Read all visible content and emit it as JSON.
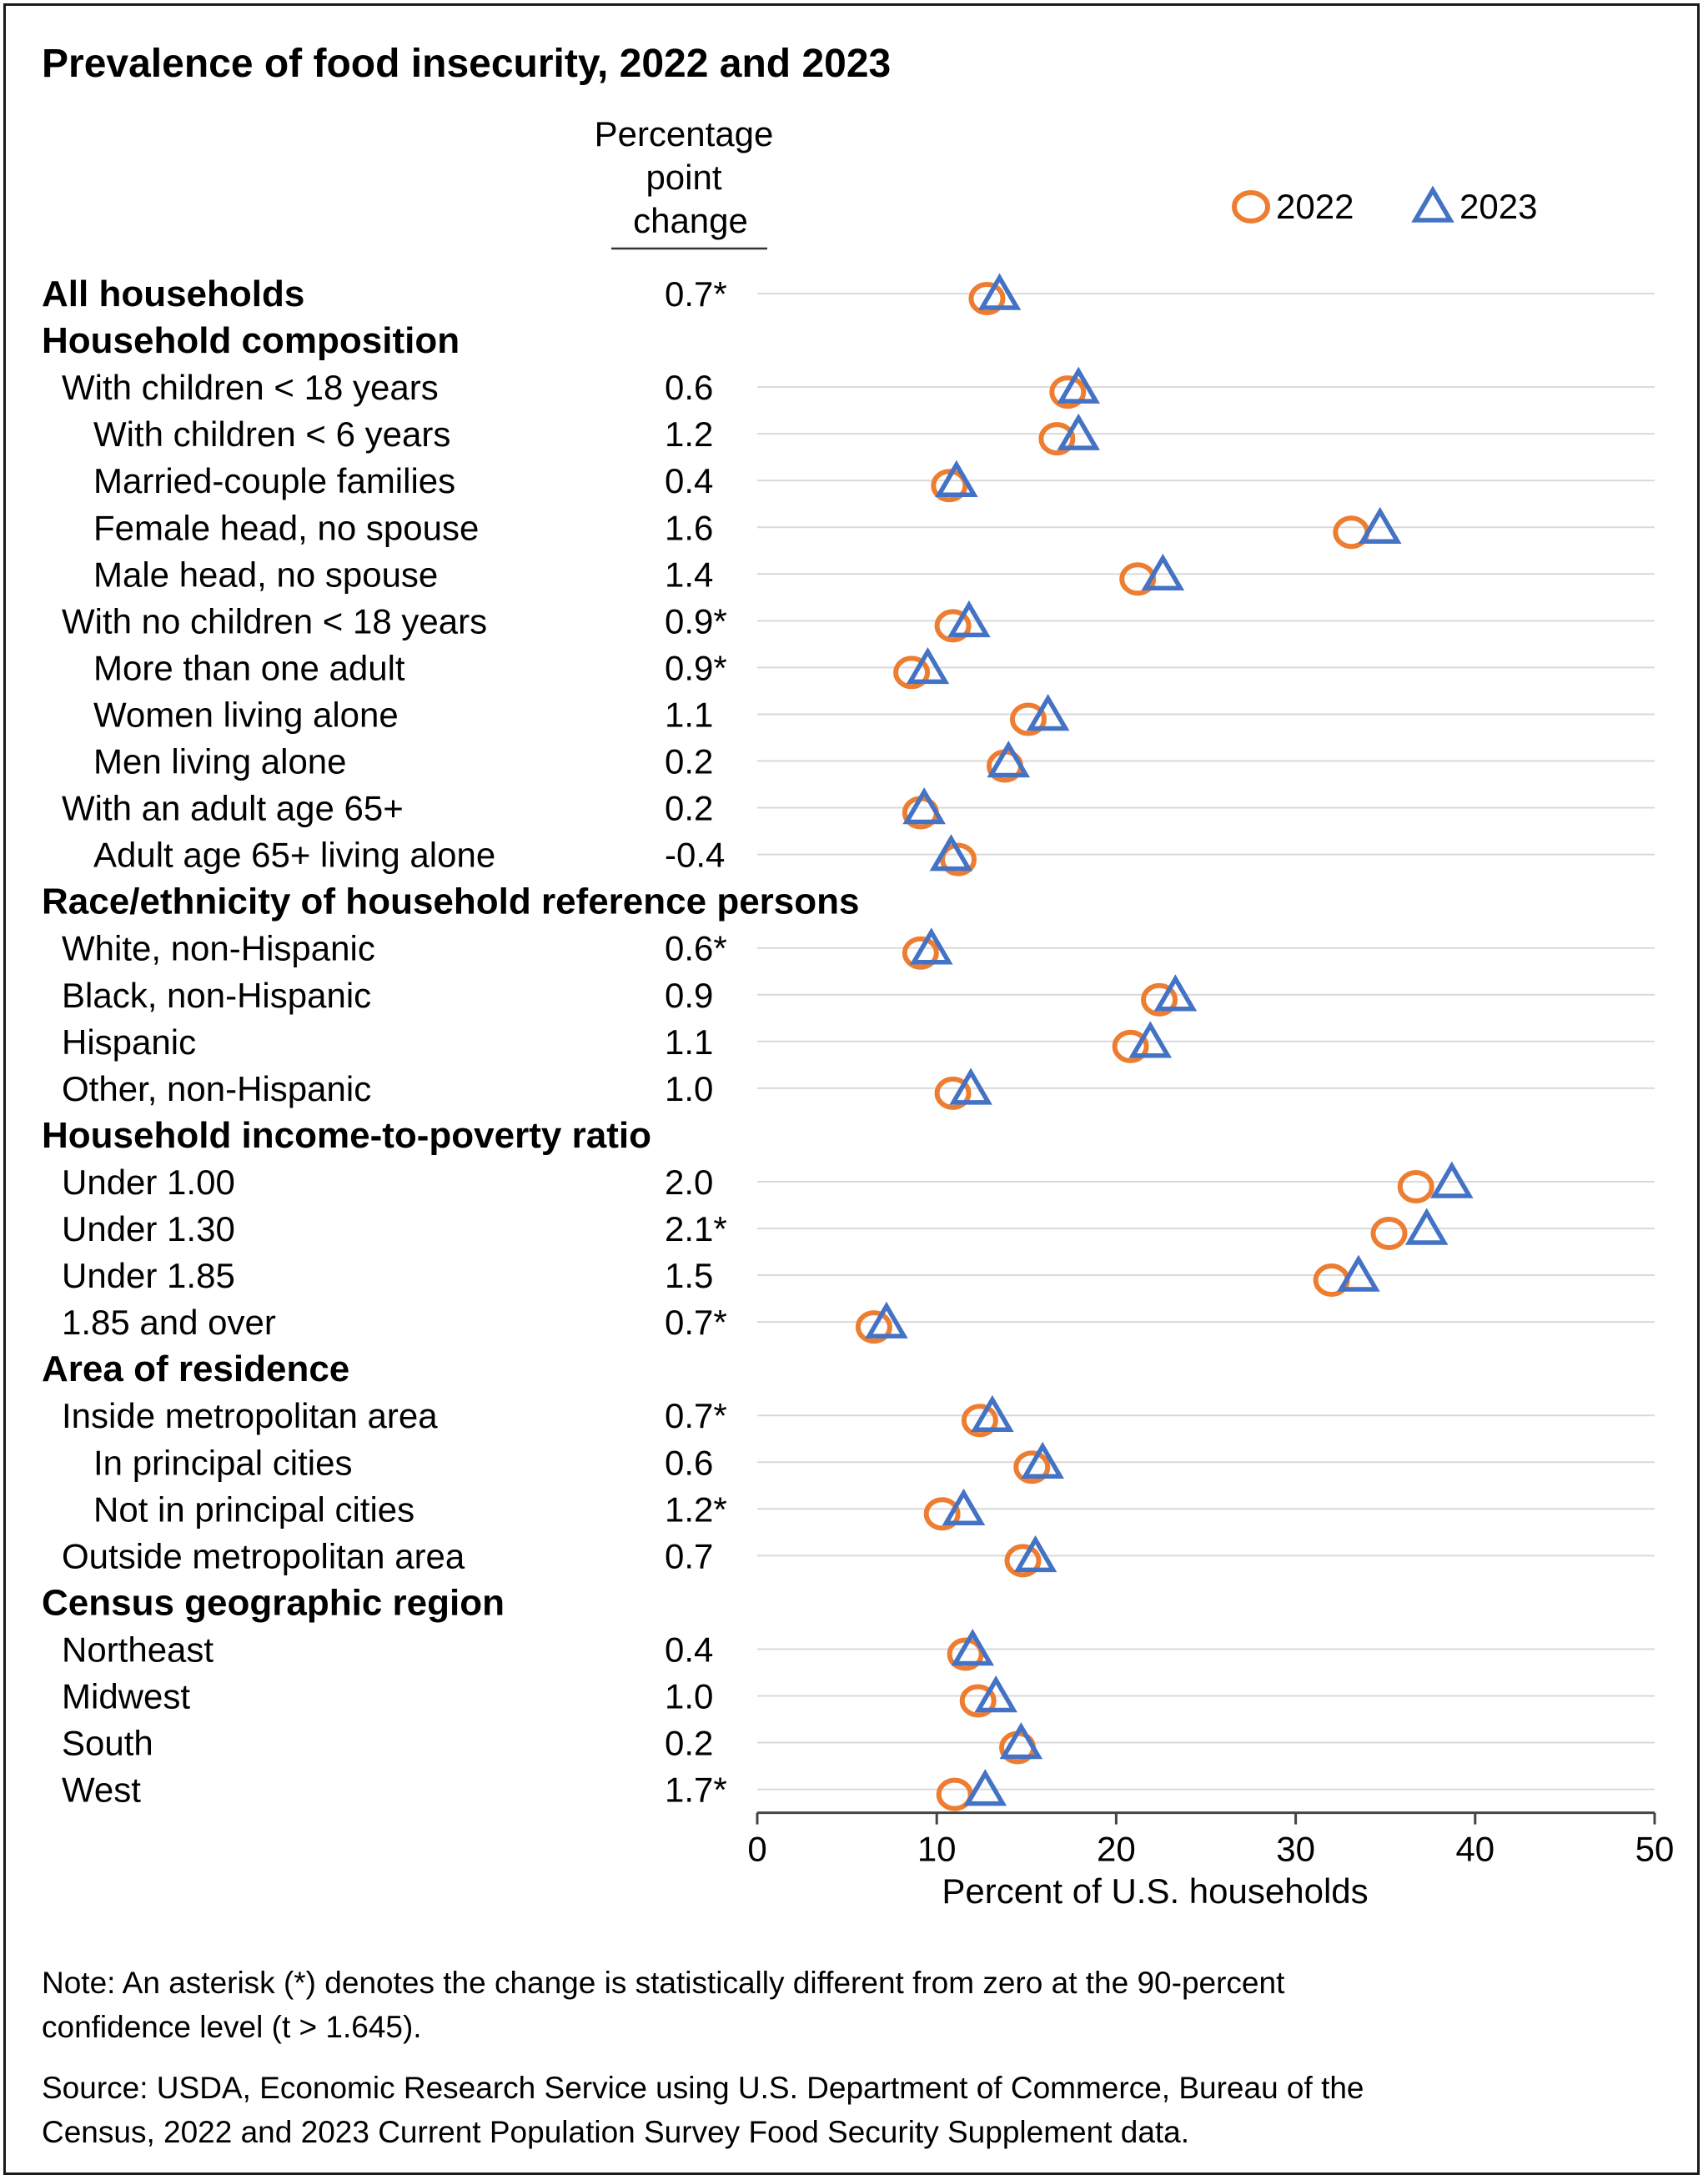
{
  "chart_data": {
    "type": "scatter",
    "title": "Prevalence of food insecurity, 2022 and 2023",
    "change_header": [
      "Percentage",
      "point",
      "change"
    ],
    "xlabel": "Percent of U.S. households",
    "xlim": [
      0,
      50
    ],
    "xticks": [
      "0",
      "10",
      "20",
      "30",
      "40",
      "50"
    ],
    "legend": [
      {
        "name": "2022",
        "marker": "circle",
        "color": "#ED7D31"
      },
      {
        "name": "2023",
        "marker": "triangle",
        "color": "#4472C4"
      }
    ],
    "rows": [
      {
        "label": "All households",
        "level": 0,
        "bold": true,
        "change": "0.7*",
        "v2022": 12.8,
        "v2023": 13.5
      },
      {
        "label": "Household composition",
        "level": 0,
        "bold": true,
        "header": true
      },
      {
        "label": "With children < 18 years",
        "level": 1,
        "change": "0.6",
        "v2022": 17.3,
        "v2023": 17.9
      },
      {
        "label": "With children < 6 years",
        "level": 2,
        "change": "1.2",
        "v2022": 16.7,
        "v2023": 17.9
      },
      {
        "label": "Married-couple families",
        "level": 2,
        "change": "0.4",
        "v2022": 10.7,
        "v2023": 11.1
      },
      {
        "label": "Female head, no spouse",
        "level": 2,
        "change": "1.6",
        "v2022": 33.1,
        "v2023": 34.7
      },
      {
        "label": "Male head, no spouse",
        "level": 2,
        "change": "1.4",
        "v2022": 21.2,
        "v2023": 22.6
      },
      {
        "label": "With no children < 18 years",
        "level": 1,
        "change": "0.9*",
        "v2022": 10.9,
        "v2023": 11.8
      },
      {
        "label": "More than one adult",
        "level": 2,
        "change": "0.9*",
        "v2022": 8.6,
        "v2023": 9.5
      },
      {
        "label": "Women living alone",
        "level": 2,
        "change": "1.1",
        "v2022": 15.1,
        "v2023": 16.2
      },
      {
        "label": "Men living alone",
        "level": 2,
        "change": "0.2",
        "v2022": 13.8,
        "v2023": 14.0
      },
      {
        "label": "With an adult age 65+",
        "level": 1,
        "change": "0.2",
        "v2022": 9.1,
        "v2023": 9.3
      },
      {
        "label": "Adult age 65+ living alone",
        "level": 2,
        "change": "-0.4",
        "v2022": 11.2,
        "v2023": 10.8
      },
      {
        "label": "Race/ethnicity of household reference persons",
        "level": 0,
        "bold": true,
        "header": true
      },
      {
        "label": "White, non-Hispanic",
        "level": 1,
        "change": "0.6*",
        "v2022": 9.1,
        "v2023": 9.7
      },
      {
        "label": "Black, non-Hispanic",
        "level": 1,
        "change": "0.9",
        "v2022": 22.4,
        "v2023": 23.3
      },
      {
        "label": "Hispanic",
        "level": 1,
        "change": "1.1",
        "v2022": 20.8,
        "v2023": 21.9
      },
      {
        "label": "Other, non-Hispanic",
        "level": 1,
        "change": "1.0",
        "v2022": 10.9,
        "v2023": 11.9
      },
      {
        "label": "Household income-to-poverty ratio",
        "level": 0,
        "bold": true,
        "header": true
      },
      {
        "label": "Under 1.00",
        "level": 1,
        "change": "2.0",
        "v2022": 36.7,
        "v2023": 38.7
      },
      {
        "label": "Under 1.30",
        "level": 1,
        "change": "2.1*",
        "v2022": 35.2,
        "v2023": 37.3
      },
      {
        "label": "Under 1.85",
        "level": 1,
        "change": "1.5",
        "v2022": 32.0,
        "v2023": 33.5
      },
      {
        "label": "1.85 and over",
        "level": 1,
        "change": "0.7*",
        "v2022": 6.5,
        "v2023": 7.2
      },
      {
        "label": "Area of residence",
        "level": 0,
        "bold": true,
        "header": true
      },
      {
        "label": "Inside metropolitan area",
        "level": 1,
        "change": "0.7*",
        "v2022": 12.4,
        "v2023": 13.1
      },
      {
        "label": "In principal cities",
        "level": 2,
        "change": "0.6",
        "v2022": 15.3,
        "v2023": 15.9
      },
      {
        "label": "Not in principal cities",
        "level": 2,
        "change": "1.2*",
        "v2022": 10.3,
        "v2023": 11.5
      },
      {
        "label": "Outside metropolitan area",
        "level": 1,
        "change": "0.7",
        "v2022": 14.8,
        "v2023": 15.5
      },
      {
        "label": "Census geographic region",
        "level": 0,
        "bold": true,
        "header": true
      },
      {
        "label": "Northeast",
        "level": 1,
        "change": "0.4",
        "v2022": 11.6,
        "v2023": 12.0
      },
      {
        "label": "Midwest",
        "level": 1,
        "change": "1.0",
        "v2022": 12.3,
        "v2023": 13.3
      },
      {
        "label": "South",
        "level": 1,
        "change": "0.2",
        "v2022": 14.5,
        "v2023": 14.7
      },
      {
        "label": "West",
        "level": 1,
        "change": "1.7*",
        "v2022": 11.0,
        "v2023": 12.7
      }
    ]
  },
  "note": {
    "lines": [
      "Note: An asterisk (*) denotes the change is statistically different from zero at the 90-percent",
      "confidence level (t > 1.645)."
    ]
  },
  "source": {
    "lines": [
      "Source: USDA, Economic Research Service using U.S. Department of Commerce, Bureau of the",
      "Census, 2022 and 2023 Current Population Survey Food Security Supplement data."
    ]
  }
}
